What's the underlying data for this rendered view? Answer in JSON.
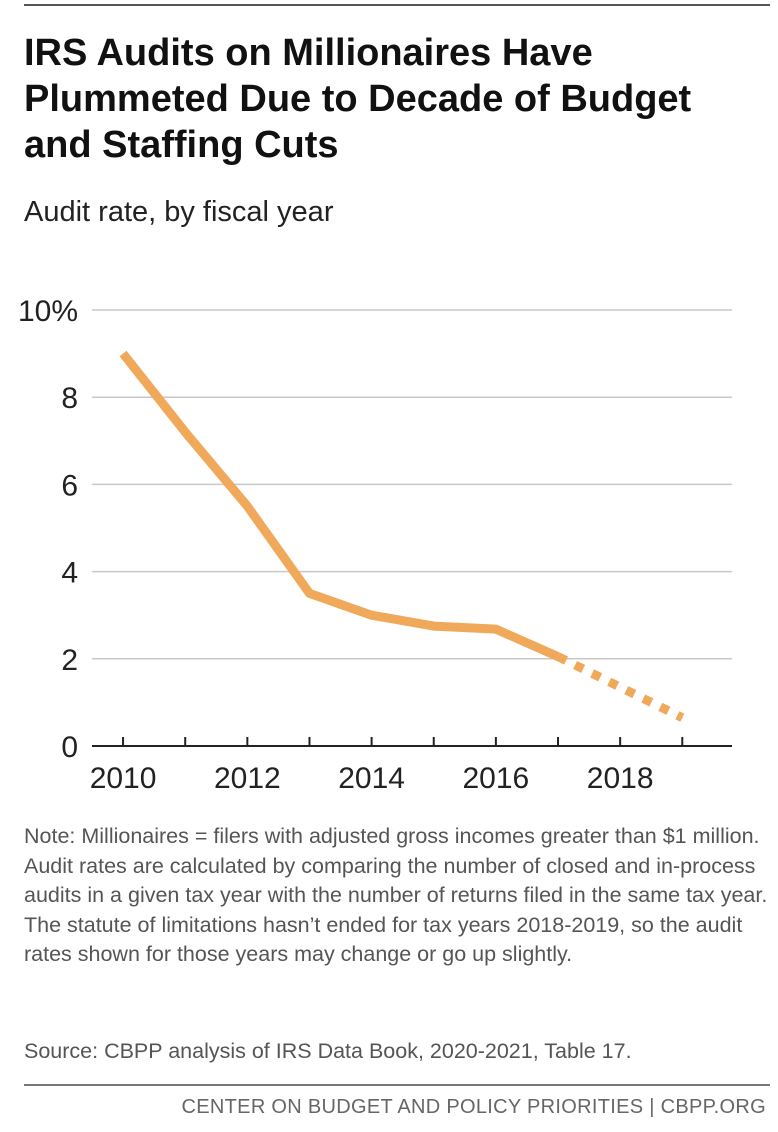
{
  "header": {
    "title": "IRS Audits on Millionaires Have Plummeted Due to Decade of Budget and Staffing Cuts",
    "subtitle": "Audit rate, by fiscal year"
  },
  "chart_data": {
    "type": "line",
    "title": "IRS Audits on Millionaires Have Plummeted Due to Decade of Budget and Staffing Cuts",
    "subtitle": "Audit rate, by fiscal year",
    "xlabel": "",
    "ylabel": "",
    "x": [
      2010,
      2011,
      2012,
      2013,
      2014,
      2015,
      2016,
      2017,
      2018,
      2019
    ],
    "series": [
      {
        "values": [
          9.0,
          7.2,
          5.5,
          3.5,
          3.0,
          2.75,
          2.68,
          2.05,
          1.35,
          0.65
        ],
        "solid_through_index": 7
      }
    ],
    "xlim": [
      2009.5,
      2019.8
    ],
    "ylim": [
      0,
      10
    ],
    "yticks": [
      0,
      2,
      4,
      6,
      8,
      10
    ],
    "ytick_labels": [
      "0",
      "2",
      "4",
      "6",
      "8",
      "10%"
    ],
    "xticks": [
      2010,
      2011,
      2012,
      2013,
      2014,
      2015,
      2016,
      2017,
      2018,
      2019
    ],
    "xtick_labels": [
      "2010",
      "2012",
      "2014",
      "2016",
      "2018"
    ],
    "grid": true,
    "line_color": "#f0a95a",
    "grid_color": "#c8c8c8",
    "axis_color": "#222222"
  },
  "note": "Note: Millionaires = filers with adjusted gross incomes greater than $1 million. Audit rates are calculated by comparing the number of closed and in-process audits in a given tax year with the number of returns filed in the same tax year. The statute of limitations hasn’t ended for tax years 2018-2019, so the audit rates shown for those years may change or go up slightly.",
  "source": "Source: CBPP analysis of IRS Data Book, 2020-2021, Table 17.",
  "footer": "CENTER ON BUDGET AND POLICY PRIORITIES | CBPP.ORG"
}
